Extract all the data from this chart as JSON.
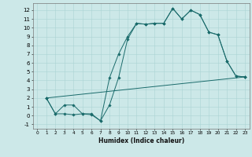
{
  "bg_color": "#cce8e8",
  "line_color": "#1a6b6b",
  "xlabel": "Humidex (Indice chaleur)",
  "xlim": [
    -0.5,
    23.5
  ],
  "ylim": [
    -1.5,
    12.8
  ],
  "xticks": [
    0,
    1,
    2,
    3,
    4,
    5,
    6,
    7,
    8,
    9,
    10,
    11,
    12,
    13,
    14,
    15,
    16,
    17,
    18,
    19,
    20,
    21,
    22,
    23
  ],
  "yticks": [
    -1,
    0,
    1,
    2,
    3,
    4,
    5,
    6,
    7,
    8,
    9,
    10,
    11,
    12
  ],
  "line1_x": [
    1,
    2,
    3,
    4,
    5,
    6,
    7,
    8,
    9,
    10,
    11,
    12,
    13,
    14,
    15,
    16,
    17,
    18,
    19,
    20,
    21,
    22,
    23
  ],
  "line1_y": [
    2.0,
    0.2,
    0.2,
    0.1,
    0.2,
    0.1,
    -0.6,
    1.2,
    4.3,
    8.7,
    10.5,
    10.4,
    10.5,
    10.5,
    12.2,
    11.0,
    12.0,
    11.5,
    9.5,
    9.2,
    6.2,
    4.5,
    4.4
  ],
  "line2_x": [
    1,
    2,
    3,
    4,
    5,
    6,
    7,
    8,
    9,
    10,
    11,
    12,
    13,
    14,
    15,
    16,
    17,
    18,
    19,
    20,
    21,
    22,
    23
  ],
  "line2_y": [
    2.0,
    0.2,
    1.2,
    1.2,
    0.2,
    0.2,
    -0.6,
    4.3,
    7.0,
    9.0,
    10.5,
    10.4,
    10.5,
    10.5,
    12.2,
    11.0,
    12.0,
    11.5,
    9.5,
    9.2,
    6.2,
    4.5,
    4.4
  ],
  "line3_x": [
    1,
    23
  ],
  "line3_y": [
    2.0,
    4.4
  ],
  "xlabel_fontsize": 5.5,
  "tick_fontsize_x": 4.2,
  "tick_fontsize_y": 5.0
}
